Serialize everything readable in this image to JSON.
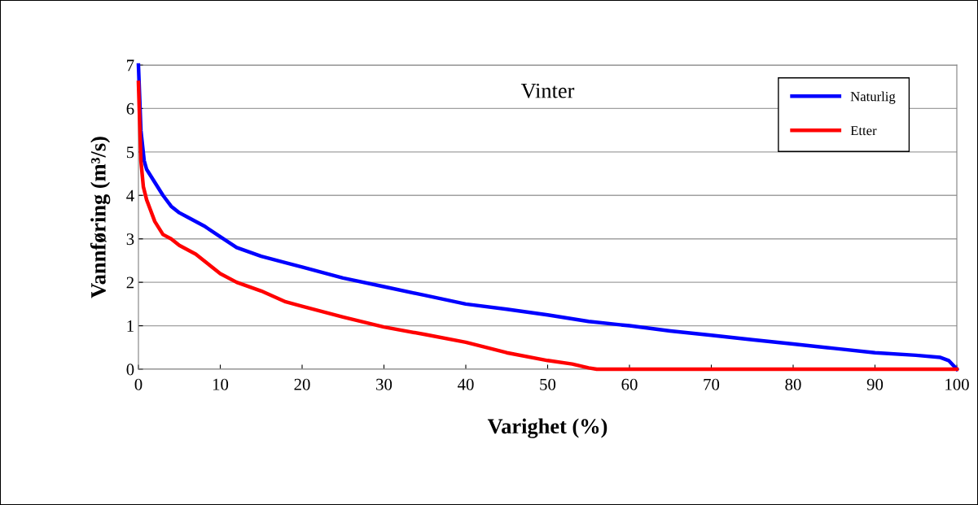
{
  "chart_data": {
    "type": "line",
    "title": "Vinter",
    "xlabel": "Varighet (%)",
    "ylabel": "Vannføring (m³/s)",
    "xlim": [
      0,
      100
    ],
    "xticks": [
      0,
      10,
      20,
      30,
      40,
      50,
      60,
      70,
      80,
      90,
      100
    ],
    "ylim": [
      0,
      7
    ],
    "yticks": [
      0,
      1,
      2,
      3,
      4,
      5,
      6,
      7
    ],
    "grid": "y",
    "legend": "top right",
    "marker": "none",
    "line_style": "solid",
    "series": [
      {
        "name": "Naturlig",
        "color": "#0000ff",
        "x": [
          0,
          0.3,
          0.7,
          1,
          2,
          3,
          4,
          5,
          6,
          8,
          10,
          12,
          15,
          18,
          20,
          25,
          30,
          35,
          40,
          45,
          50,
          55,
          60,
          65,
          70,
          75,
          80,
          85,
          90,
          95,
          98,
          99,
          100
        ],
        "values": [
          7,
          5.5,
          4.8,
          4.6,
          4.3,
          4.0,
          3.75,
          3.6,
          3.5,
          3.3,
          3.05,
          2.8,
          2.6,
          2.45,
          2.35,
          2.1,
          1.9,
          1.7,
          1.5,
          1.38,
          1.25,
          1.1,
          1.0,
          0.88,
          0.78,
          0.68,
          0.58,
          0.48,
          0.38,
          0.32,
          0.27,
          0.2,
          0
        ]
      },
      {
        "name": "Etter",
        "color": "#ff0000",
        "x": [
          0,
          0.3,
          0.6,
          1,
          2,
          3,
          4,
          5,
          7,
          8,
          10,
          12,
          15,
          18,
          20,
          25,
          30,
          35,
          40,
          45,
          50,
          53,
          55,
          56,
          100
        ],
        "values": [
          6.6,
          4.8,
          4.2,
          3.9,
          3.4,
          3.1,
          3.0,
          2.85,
          2.65,
          2.5,
          2.2,
          2.0,
          1.8,
          1.55,
          1.45,
          1.2,
          0.97,
          0.8,
          0.62,
          0.38,
          0.2,
          0.12,
          0.03,
          0,
          0
        ]
      }
    ]
  }
}
